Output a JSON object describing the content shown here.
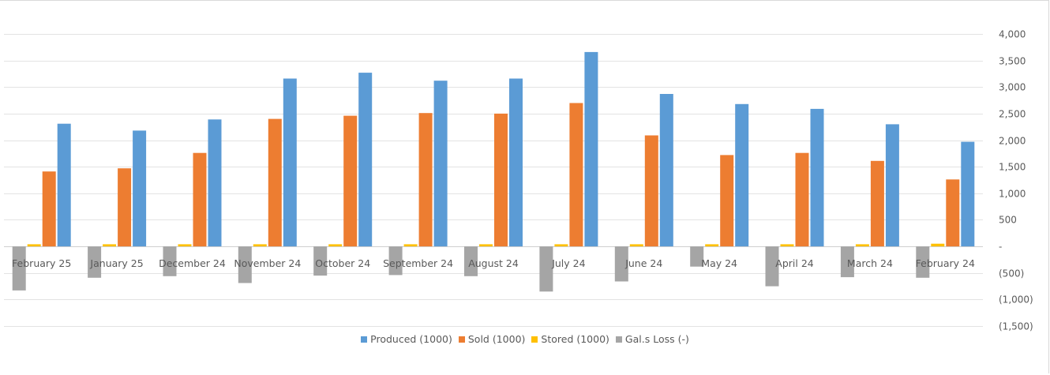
{
  "chart_data": {
    "type": "bar",
    "categories": [
      "February 25",
      "January 25",
      "December 24",
      "November 24",
      "October 24",
      "September 24",
      "August 24",
      "July 24",
      "June 24",
      "May 24",
      "April 24",
      "March 24",
      "February 24"
    ],
    "series": [
      {
        "name": "Produced (1000)",
        "color": "#5b9bd5",
        "values": [
          2310,
          2180,
          2390,
          3160,
          3270,
          3120,
          3160,
          3660,
          2870,
          2680,
          2590,
          2300,
          1970
        ]
      },
      {
        "name": "Sold (1000)",
        "color": "#ed7d31",
        "values": [
          1410,
          1470,
          1760,
          2400,
          2460,
          2510,
          2500,
          2700,
          2090,
          1720,
          1760,
          1610,
          1260
        ]
      },
      {
        "name": "Stored (1000)",
        "color": "#ffc000",
        "values": [
          40,
          40,
          40,
          40,
          40,
          40,
          40,
          40,
          40,
          40,
          40,
          40,
          50
        ]
      },
      {
        "name": "Gal.s Loss (-)",
        "color": "#a5a5a5",
        "values": [
          -830,
          -590,
          -560,
          -690,
          -550,
          -540,
          -560,
          -850,
          -660,
          -380,
          -750,
          -580,
          -590
        ]
      }
    ],
    "y_ticks": [
      {
        "value": 4000,
        "label": "4,000"
      },
      {
        "value": 3500,
        "label": "3,500"
      },
      {
        "value": 3000,
        "label": "3,000"
      },
      {
        "value": 2500,
        "label": "2,500"
      },
      {
        "value": 2000,
        "label": "2,000"
      },
      {
        "value": 1500,
        "label": "1,500"
      },
      {
        "value": 1000,
        "label": "1,000"
      },
      {
        "value": 500,
        "label": "500"
      },
      {
        "value": 0,
        "label": "-"
      },
      {
        "value": -500,
        "label": "(500)"
      },
      {
        "value": -1000,
        "label": "(1,000)"
      },
      {
        "value": -1500,
        "label": "(1,500)"
      }
    ],
    "ylim": [
      -1500,
      4000
    ],
    "y_axis_position": "right",
    "x_order": "reversed",
    "grid": true,
    "legend_position": "bottom",
    "title": "",
    "xlabel": "",
    "ylabel": ""
  }
}
